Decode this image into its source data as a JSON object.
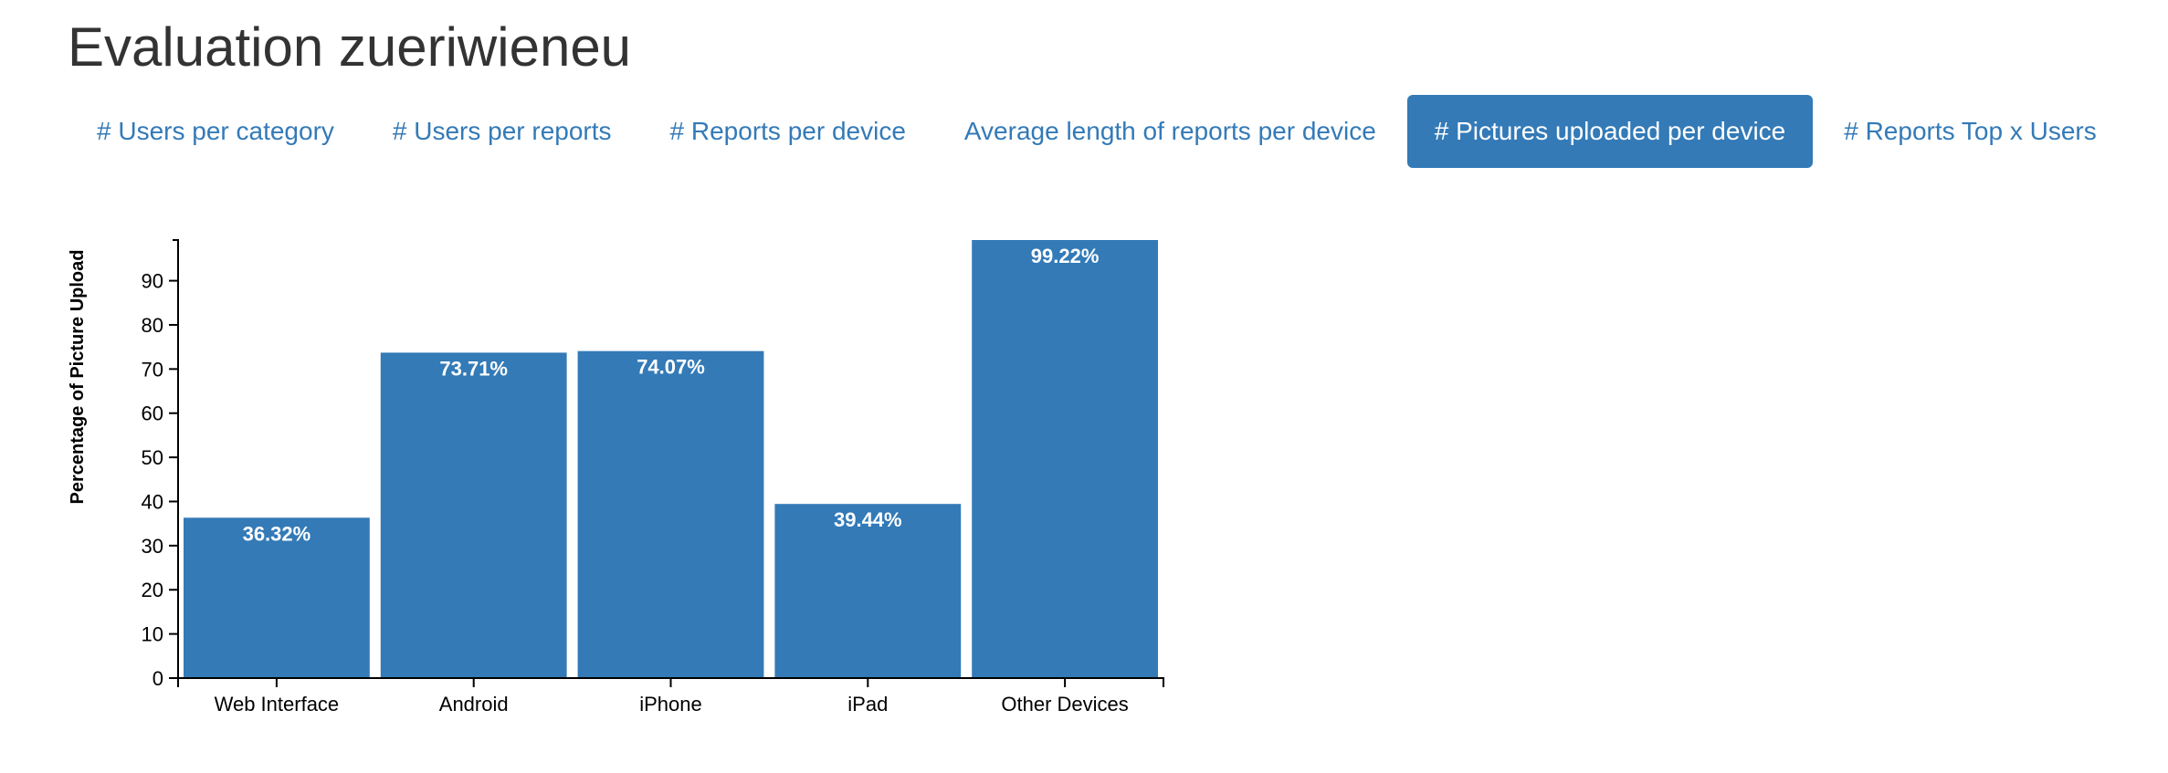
{
  "page": {
    "title": "Evaluation zueriwieneu"
  },
  "tabs": [
    {
      "label": "# Users per category",
      "active": false
    },
    {
      "label": "# Users per reports",
      "active": false
    },
    {
      "label": "# Reports per device",
      "active": false
    },
    {
      "label": "Average length of reports per device",
      "active": false
    },
    {
      "label": "# Pictures uploaded per device",
      "active": true
    },
    {
      "label": "# Reports Top x Users",
      "active": false
    }
  ],
  "colors": {
    "accent": "#337ab7",
    "text": "#333333"
  },
  "chart_data": {
    "type": "bar",
    "categories": [
      "Web Interface",
      "Android",
      "iPhone",
      "iPad",
      "Other Devices"
    ],
    "values": [
      36.32,
      73.71,
      74.07,
      39.44,
      99.22
    ],
    "data_labels": [
      "36.32%",
      "73.71%",
      "74.07%",
      "39.44%",
      "99.22%"
    ],
    "ylabel": "Percentage of Picture Upload",
    "xlabel": "",
    "ylim": [
      0,
      99.22
    ],
    "yticks": [
      0,
      10,
      20,
      30,
      40,
      50,
      60,
      70,
      80,
      90
    ],
    "bar_color": "#337ab7",
    "grid": false,
    "legend": "none"
  }
}
